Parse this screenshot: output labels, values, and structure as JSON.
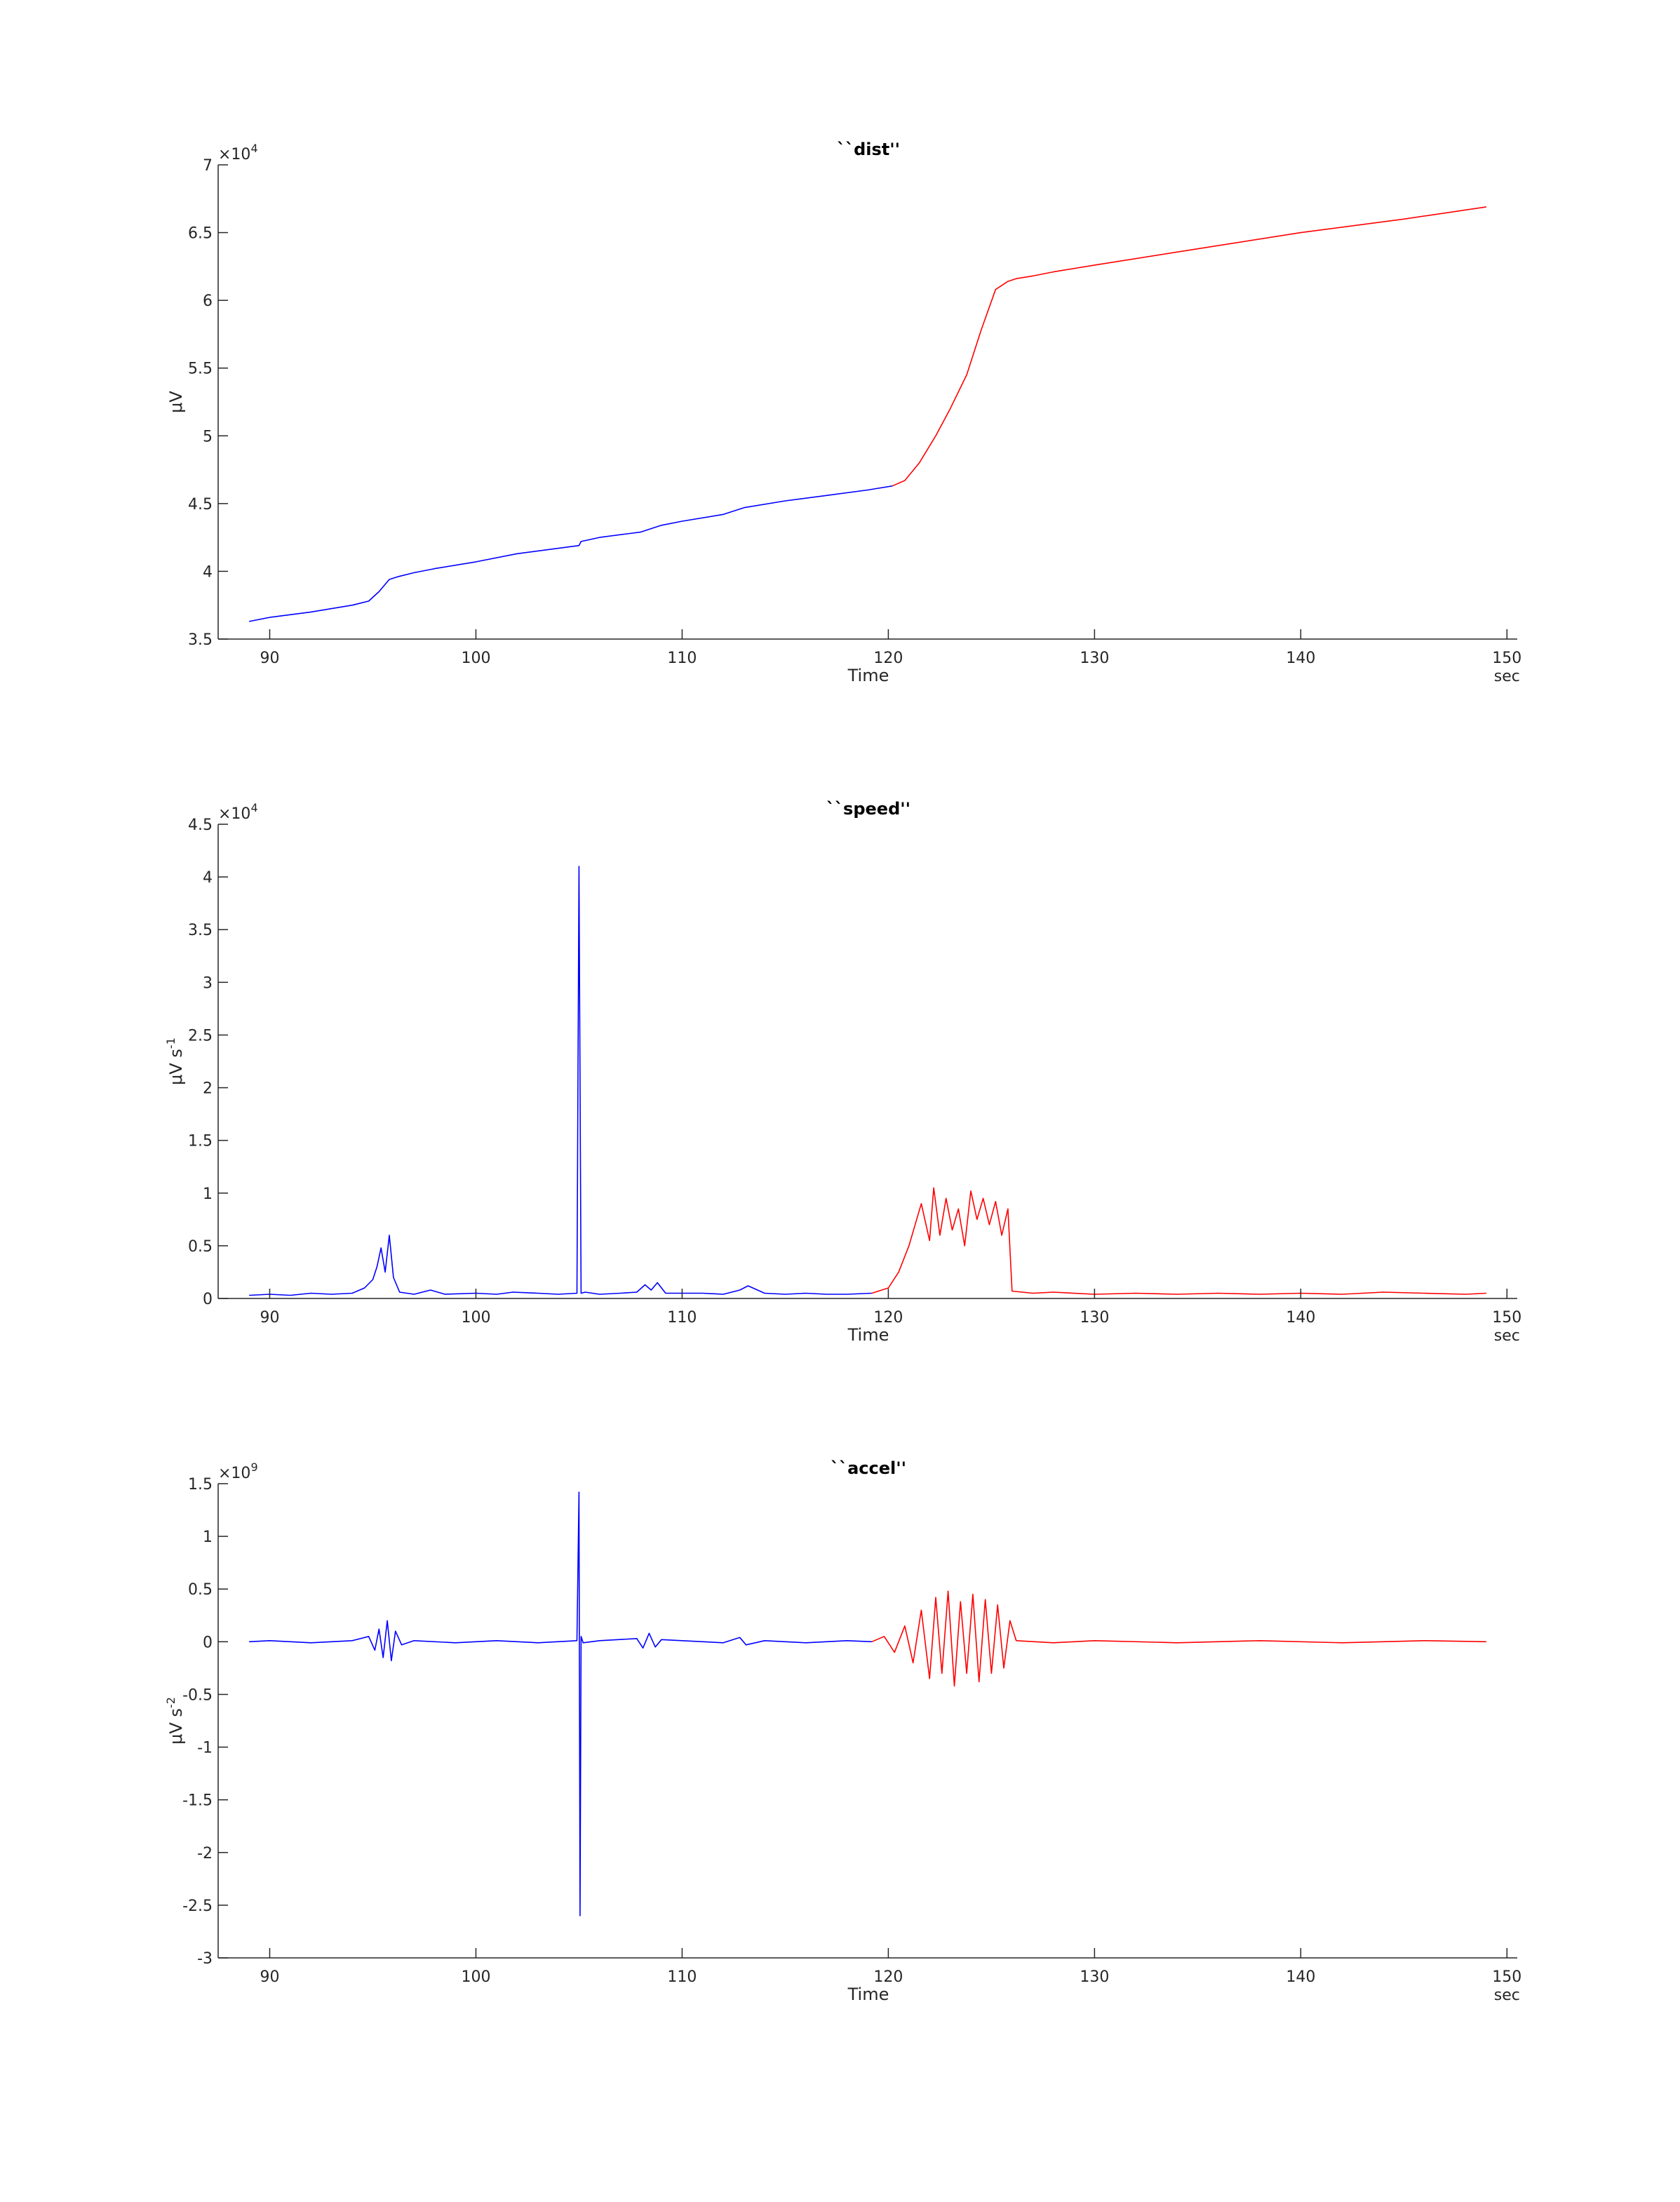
{
  "colors": {
    "before": "#0000ff",
    "after": "#ff0000",
    "axis": "#262626"
  },
  "chart_data": [
    {
      "type": "line",
      "title": "``dist''",
      "xlabel": "Time",
      "xunit": "sec",
      "ylabel": "μV",
      "ylabel_sup": "",
      "y_exponent_label": "×10",
      "y_exponent": "4",
      "xlim": [
        87.5,
        150.5
      ],
      "ylim": [
        3.5,
        7
      ],
      "x_ticks": [
        90,
        100,
        110,
        120,
        130,
        140,
        150
      ],
      "y_ticks": [
        3.5,
        4,
        4.5,
        5,
        5.5,
        6,
        6.5,
        7
      ],
      "y_tick_labels": [
        "3.5",
        "4",
        "4.5",
        "5",
        "5.5",
        "6",
        "6.5",
        "7"
      ],
      "series": [
        {
          "color": "before",
          "x": [
            89,
            90,
            92,
            94,
            94.8,
            95.3,
            95.8,
            96.2,
            97,
            98,
            100,
            102,
            104,
            105,
            105.1,
            106,
            108,
            109,
            110,
            112,
            113,
            115,
            117,
            119,
            120.2
          ],
          "y": [
            3.63,
            3.66,
            3.7,
            3.75,
            3.78,
            3.85,
            3.94,
            3.96,
            3.99,
            4.02,
            4.07,
            4.13,
            4.17,
            4.19,
            4.22,
            4.25,
            4.29,
            4.34,
            4.37,
            4.42,
            4.47,
            4.52,
            4.56,
            4.6,
            4.63
          ]
        },
        {
          "color": "after",
          "x": [
            120.2,
            120.8,
            121.5,
            122.3,
            123,
            123.8,
            124.5,
            125.2,
            125.8,
            126.2,
            127,
            128,
            130,
            135,
            140,
            145,
            149
          ],
          "y": [
            4.63,
            4.67,
            4.8,
            5.0,
            5.2,
            5.45,
            5.78,
            6.08,
            6.14,
            6.16,
            6.18,
            6.21,
            6.26,
            6.38,
            6.5,
            6.6,
            6.69
          ]
        }
      ]
    },
    {
      "type": "line",
      "title": "``speed''",
      "xlabel": "Time",
      "xunit": "sec",
      "ylabel": "μV s",
      "ylabel_sup": "-1",
      "y_exponent_label": "×10",
      "y_exponent": "4",
      "xlim": [
        87.5,
        150.5
      ],
      "ylim": [
        0,
        4.5
      ],
      "x_ticks": [
        90,
        100,
        110,
        120,
        130,
        140,
        150
      ],
      "y_ticks": [
        0,
        0.5,
        1,
        1.5,
        2,
        2.5,
        3,
        3.5,
        4,
        4.5
      ],
      "y_tick_labels": [
        "0",
        "0.5",
        "1",
        "1.5",
        "2",
        "2.5",
        "3",
        "3.5",
        "4",
        "4.5"
      ],
      "series": [
        {
          "color": "before",
          "x": [
            89,
            90,
            91,
            92,
            93,
            94,
            94.6,
            95,
            95.2,
            95.4,
            95.6,
            95.8,
            96,
            96.3,
            97,
            97.8,
            98.5,
            100,
            101,
            101.8,
            103,
            104,
            104.9,
            105,
            105.1,
            105.3,
            106,
            107,
            107.8,
            108.2,
            108.5,
            108.8,
            109.2,
            110,
            111,
            112,
            112.8,
            113.2,
            114,
            115,
            116,
            117,
            118,
            119.2
          ],
          "y": [
            0.03,
            0.04,
            0.03,
            0.05,
            0.04,
            0.05,
            0.1,
            0.18,
            0.3,
            0.48,
            0.25,
            0.6,
            0.2,
            0.06,
            0.04,
            0.08,
            0.04,
            0.05,
            0.04,
            0.06,
            0.05,
            0.04,
            0.05,
            4.1,
            0.05,
            0.06,
            0.04,
            0.05,
            0.06,
            0.13,
            0.08,
            0.15,
            0.05,
            0.05,
            0.05,
            0.04,
            0.08,
            0.12,
            0.05,
            0.04,
            0.05,
            0.04,
            0.04,
            0.05
          ]
        },
        {
          "color": "after",
          "x": [
            119.2,
            120,
            120.5,
            121,
            121.3,
            121.6,
            122,
            122.2,
            122.5,
            122.8,
            123.1,
            123.4,
            123.7,
            124,
            124.3,
            124.6,
            124.9,
            125.2,
            125.5,
            125.8,
            126,
            127,
            128,
            130,
            132,
            134,
            136,
            138,
            140,
            142,
            144,
            146,
            148,
            149
          ],
          "y": [
            0.05,
            0.1,
            0.25,
            0.5,
            0.7,
            0.9,
            0.55,
            1.05,
            0.6,
            0.95,
            0.65,
            0.85,
            0.5,
            1.02,
            0.75,
            0.95,
            0.7,
            0.92,
            0.6,
            0.85,
            0.07,
            0.05,
            0.06,
            0.04,
            0.05,
            0.04,
            0.05,
            0.04,
            0.05,
            0.04,
            0.06,
            0.05,
            0.04,
            0.05
          ]
        }
      ]
    },
    {
      "type": "line",
      "title": "``accel''",
      "xlabel": "Time",
      "xunit": "sec",
      "ylabel": "μV s",
      "ylabel_sup": "-2",
      "y_exponent_label": "×10",
      "y_exponent": "9",
      "xlim": [
        87.5,
        150.5
      ],
      "ylim": [
        -3,
        1.5
      ],
      "x_ticks": [
        90,
        100,
        110,
        120,
        130,
        140,
        150
      ],
      "y_ticks": [
        -3,
        -2.5,
        -2,
        -1.5,
        -1,
        -0.5,
        0,
        0.5,
        1,
        1.5
      ],
      "y_tick_labels": [
        "-3",
        "-2.5",
        "-2",
        "-1.5",
        "-1",
        "-0.5",
        "0",
        "0.5",
        "1",
        "1.5"
      ],
      "series": [
        {
          "color": "before",
          "x": [
            89,
            90,
            92,
            94,
            94.8,
            95.1,
            95.3,
            95.5,
            95.7,
            95.9,
            96.1,
            96.4,
            97,
            99,
            101,
            103,
            104.9,
            105,
            105.05,
            105.1,
            105.2,
            106,
            107.8,
            108.1,
            108.4,
            108.7,
            109,
            110,
            112,
            112.8,
            113.1,
            114,
            116,
            118,
            119.2
          ],
          "y": [
            0.0,
            0.01,
            -0.01,
            0.01,
            0.05,
            -0.08,
            0.12,
            -0.15,
            0.2,
            -0.18,
            0.1,
            -0.03,
            0.01,
            -0.01,
            0.01,
            -0.01,
            0.01,
            1.42,
            -2.6,
            0.05,
            -0.01,
            0.01,
            0.03,
            -0.06,
            0.08,
            -0.05,
            0.02,
            0.01,
            -0.01,
            0.04,
            -0.03,
            0.01,
            -0.01,
            0.01,
            0.0
          ]
        },
        {
          "color": "after",
          "x": [
            119.2,
            119.8,
            120.3,
            120.8,
            121.2,
            121.6,
            122,
            122.3,
            122.6,
            122.9,
            123.2,
            123.5,
            123.8,
            124.1,
            124.4,
            124.7,
            125,
            125.3,
            125.6,
            125.9,
            126.2,
            128,
            130,
            134,
            138,
            142,
            146,
            149
          ],
          "y": [
            0.0,
            0.05,
            -0.1,
            0.15,
            -0.2,
            0.3,
            -0.35,
            0.42,
            -0.3,
            0.48,
            -0.42,
            0.38,
            -0.3,
            0.45,
            -0.38,
            0.4,
            -0.3,
            0.35,
            -0.25,
            0.2,
            0.01,
            -0.01,
            0.01,
            -0.01,
            0.01,
            -0.01,
            0.01,
            0.0
          ]
        }
      ]
    }
  ]
}
